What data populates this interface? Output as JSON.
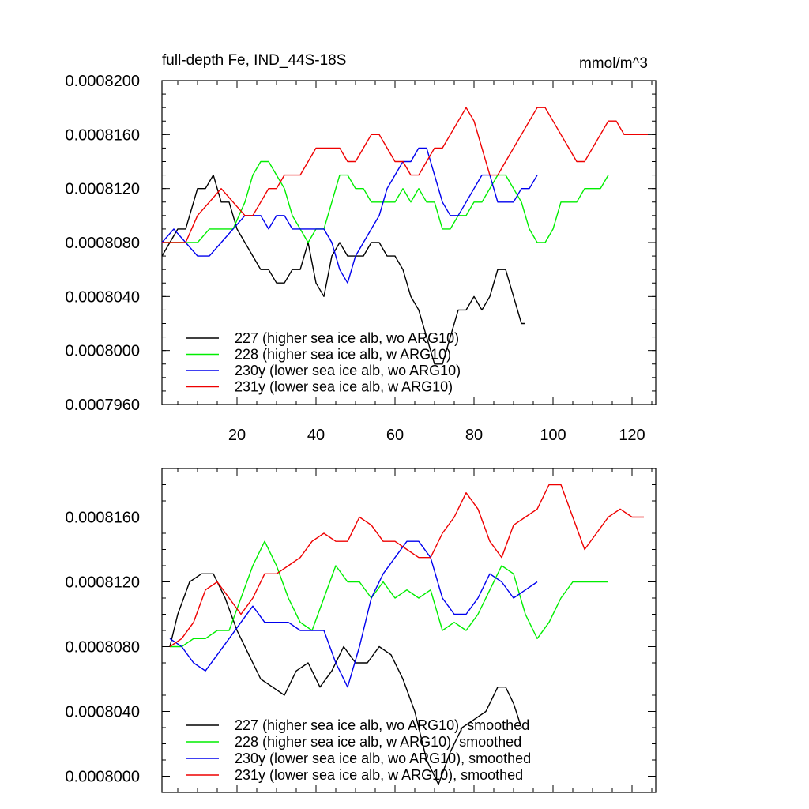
{
  "chart_data": [
    {
      "type": "line",
      "title": "full-depth Fe, IND_44S-18S",
      "unit_label": "mmol/m^3",
      "xlim": [
        1,
        126
      ],
      "ylim": [
        0.000796,
        0.00082
      ],
      "xticks": [
        20,
        40,
        60,
        80,
        100,
        120
      ],
      "xtick_labels": [
        "20",
        "40",
        "60",
        "80",
        "100",
        "120"
      ],
      "yticks": [
        0.000796,
        0.0008,
        0.000804,
        0.000808,
        0.000812,
        0.000816,
        0.00082
      ],
      "ytick_labels": [
        "0.0007960",
        "0.0008000",
        "0.0008040",
        "0.0008080",
        "0.0008120",
        "0.0008160",
        "0.0008200"
      ],
      "legend_position": "bottom-left",
      "series": [
        {
          "name": "227 (higher sea ice alb, wo ARG10)",
          "color": "#000000",
          "x": [
            1,
            5,
            7,
            10,
            12,
            14,
            16,
            18,
            20,
            22,
            24,
            26,
            28,
            30,
            32,
            34,
            36,
            38,
            40,
            42,
            44,
            46,
            48,
            50,
            52,
            54,
            56,
            58,
            60,
            62,
            64,
            66,
            68,
            70,
            72,
            74,
            76,
            78,
            80,
            82,
            84,
            86,
            88,
            90,
            92,
            93
          ],
          "y": [
            0.000807,
            0.000809,
            0.000809,
            0.000812,
            0.000812,
            0.000813,
            0.000811,
            0.000811,
            0.000809,
            0.000808,
            0.000807,
            0.000806,
            0.000806,
            0.000805,
            0.000805,
            0.000806,
            0.000806,
            0.000808,
            0.000805,
            0.000804,
            0.000807,
            0.000808,
            0.000807,
            0.000807,
            0.000807,
            0.000808,
            0.000808,
            0.000807,
            0.000807,
            0.000806,
            0.000804,
            0.000803,
            0.000801,
            0.000799,
            0.000799,
            0.000801,
            0.000803,
            0.000803,
            0.000804,
            0.000803,
            0.000804,
            0.000806,
            0.000806,
            0.000804,
            0.000802,
            0.000802
          ]
        },
        {
          "name": "228 (higher sea ice alb, w ARG10)",
          "color": "#00ee00",
          "x": [
            1,
            4,
            7,
            10,
            13,
            16,
            19,
            22,
            24,
            26,
            28,
            30,
            32,
            34,
            36,
            38,
            40,
            42,
            44,
            46,
            48,
            50,
            52,
            54,
            56,
            58,
            60,
            62,
            64,
            66,
            68,
            70,
            72,
            74,
            76,
            78,
            80,
            82,
            84,
            86,
            88,
            90,
            92,
            94,
            96,
            98,
            100,
            102,
            104,
            106,
            108,
            110,
            112,
            114
          ],
          "y": [
            0.000808,
            0.000808,
            0.000808,
            0.000808,
            0.000809,
            0.000809,
            0.000809,
            0.000811,
            0.000813,
            0.000814,
            0.000814,
            0.000813,
            0.000812,
            0.00081,
            0.000809,
            0.000808,
            0.000809,
            0.000809,
            0.000811,
            0.000813,
            0.000813,
            0.000812,
            0.000812,
            0.000811,
            0.000811,
            0.000811,
            0.000811,
            0.000812,
            0.000811,
            0.000812,
            0.000811,
            0.000811,
            0.000809,
            0.000809,
            0.00081,
            0.00081,
            0.000811,
            0.000811,
            0.000812,
            0.000813,
            0.000813,
            0.000812,
            0.000811,
            0.000809,
            0.000808,
            0.000808,
            0.000809,
            0.000811,
            0.000811,
            0.000811,
            0.000812,
            0.000812,
            0.000812,
            0.000813
          ]
        },
        {
          "name": "230y (lower sea ice alb, wo ARG10)",
          "color": "#0000ee",
          "x": [
            1,
            4,
            7,
            10,
            13,
            16,
            19,
            22,
            24,
            26,
            28,
            30,
            32,
            34,
            36,
            38,
            40,
            42,
            44,
            46,
            48,
            50,
            52,
            54,
            56,
            58,
            60,
            62,
            64,
            66,
            68,
            70,
            72,
            74,
            76,
            78,
            80,
            82,
            84,
            86,
            88,
            90,
            92,
            94,
            96
          ],
          "y": [
            0.000808,
            0.000809,
            0.000808,
            0.000807,
            0.000807,
            0.000808,
            0.000809,
            0.00081,
            0.00081,
            0.00081,
            0.000809,
            0.00081,
            0.00081,
            0.000809,
            0.000809,
            0.000809,
            0.000809,
            0.000809,
            0.000808,
            0.000806,
            0.000805,
            0.000807,
            0.000808,
            0.000809,
            0.00081,
            0.000812,
            0.000813,
            0.000814,
            0.000814,
            0.000815,
            0.000815,
            0.000813,
            0.000811,
            0.00081,
            0.00081,
            0.000811,
            0.000812,
            0.000813,
            0.000813,
            0.000811,
            0.000811,
            0.000811,
            0.000812,
            0.000812,
            0.000813
          ]
        },
        {
          "name": "231y (lower sea ice alb, w ARG10)",
          "color": "#ee0000",
          "x": [
            1,
            4,
            7,
            10,
            13,
            16,
            19,
            22,
            24,
            26,
            28,
            30,
            32,
            34,
            36,
            38,
            40,
            42,
            44,
            46,
            48,
            50,
            52,
            54,
            56,
            58,
            60,
            62,
            64,
            66,
            68,
            70,
            72,
            74,
            76,
            78,
            80,
            82,
            84,
            86,
            88,
            90,
            92,
            94,
            96,
            98,
            100,
            102,
            104,
            106,
            108,
            110,
            112,
            114,
            116,
            118,
            120,
            122,
            124
          ],
          "y": [
            0.000808,
            0.000808,
            0.000808,
            0.00081,
            0.000811,
            0.000812,
            0.000811,
            0.00081,
            0.00081,
            0.000811,
            0.000812,
            0.000812,
            0.000813,
            0.000813,
            0.000813,
            0.000814,
            0.000815,
            0.000815,
            0.000815,
            0.000815,
            0.000814,
            0.000814,
            0.000815,
            0.000816,
            0.000816,
            0.000815,
            0.000814,
            0.000814,
            0.000813,
            0.000813,
            0.000814,
            0.000815,
            0.000815,
            0.000816,
            0.000817,
            0.000818,
            0.000817,
            0.000815,
            0.000813,
            0.000813,
            0.000814,
            0.000815,
            0.000816,
            0.000817,
            0.000818,
            0.000818,
            0.000817,
            0.000816,
            0.000815,
            0.000814,
            0.000814,
            0.000815,
            0.000816,
            0.000817,
            0.000817,
            0.000816,
            0.000816,
            0.000816,
            0.000816
          ]
        }
      ]
    },
    {
      "type": "line",
      "xlim": [
        1,
        126
      ],
      "ylim": [
        0.000799,
        0.000819
      ],
      "xticks": [
        20,
        40,
        60,
        80,
        100,
        120
      ],
      "yticks": [
        0.0008,
        0.000804,
        0.000808,
        0.000812,
        0.000816
      ],
      "ytick_labels": [
        "0.0008000",
        "0.0008040",
        "0.0008080",
        "0.0008120",
        "0.0008160"
      ],
      "legend_position": "bottom-left",
      "series": [
        {
          "name": "227 (higher sea ice alb, wo ARG10), smoothed",
          "color": "#000000",
          "x": [
            3,
            5,
            8,
            11,
            14,
            17,
            20,
            23,
            26,
            29,
            32,
            35,
            38,
            41,
            44,
            47,
            50,
            53,
            56,
            59,
            62,
            65,
            68,
            71,
            74,
            77,
            80,
            83,
            86,
            88,
            90,
            92
          ],
          "y": [
            0.000808,
            0.00081,
            0.000812,
            0.0008125,
            0.0008125,
            0.000811,
            0.000809,
            0.0008075,
            0.000806,
            0.0008055,
            0.000805,
            0.0008065,
            0.000807,
            0.0008055,
            0.0008065,
            0.000808,
            0.000807,
            0.000807,
            0.000808,
            0.0008075,
            0.000806,
            0.000804,
            0.000801,
            0.0007995,
            0.0008015,
            0.000803,
            0.0008035,
            0.000804,
            0.0008055,
            0.0008055,
            0.0008045,
            0.000803
          ]
        },
        {
          "name": "228 (higher sea ice alb, w ARG10), smoothed",
          "color": "#00ee00",
          "x": [
            3,
            6,
            9,
            12,
            15,
            18,
            21,
            24,
            27,
            30,
            33,
            36,
            39,
            42,
            45,
            48,
            51,
            54,
            57,
            60,
            63,
            66,
            69,
            72,
            75,
            78,
            81,
            84,
            87,
            90,
            93,
            96,
            99,
            102,
            105,
            108,
            111,
            114
          ],
          "y": [
            0.000808,
            0.000808,
            0.0008085,
            0.0008085,
            0.000809,
            0.000809,
            0.000811,
            0.000813,
            0.0008145,
            0.000813,
            0.000811,
            0.0008095,
            0.000809,
            0.000811,
            0.000813,
            0.000812,
            0.000812,
            0.000811,
            0.000812,
            0.000811,
            0.0008115,
            0.000811,
            0.0008115,
            0.000809,
            0.0008095,
            0.000809,
            0.00081,
            0.0008115,
            0.000813,
            0.0008125,
            0.00081,
            0.0008085,
            0.0008095,
            0.000811,
            0.000812,
            0.000812,
            0.000812,
            0.000812
          ]
        },
        {
          "name": "230y (lower sea ice alb, wo ARG10), smoothed",
          "color": "#0000ee",
          "x": [
            3,
            6,
            9,
            12,
            15,
            18,
            21,
            24,
            27,
            30,
            33,
            36,
            39,
            42,
            45,
            48,
            51,
            54,
            57,
            60,
            63,
            66,
            69,
            72,
            75,
            78,
            81,
            84,
            87,
            90,
            93,
            96
          ],
          "y": [
            0.0008085,
            0.000808,
            0.000807,
            0.0008065,
            0.0008075,
            0.0008085,
            0.0008095,
            0.0008105,
            0.0008095,
            0.0008095,
            0.0008095,
            0.000809,
            0.000809,
            0.000809,
            0.000807,
            0.0008055,
            0.000808,
            0.000811,
            0.0008125,
            0.0008135,
            0.0008145,
            0.0008145,
            0.0008135,
            0.000811,
            0.00081,
            0.00081,
            0.000811,
            0.0008125,
            0.000812,
            0.000811,
            0.0008115,
            0.000812
          ]
        },
        {
          "name": "231y (lower sea ice alb, w ARG10), smoothed",
          "color": "#ee0000",
          "x": [
            3,
            6,
            9,
            12,
            15,
            18,
            21,
            24,
            27,
            30,
            33,
            36,
            39,
            42,
            45,
            48,
            51,
            54,
            57,
            60,
            63,
            66,
            69,
            72,
            75,
            78,
            81,
            84,
            87,
            90,
            93,
            96,
            99,
            102,
            105,
            108,
            111,
            114,
            117,
            120,
            123
          ],
          "y": [
            0.000808,
            0.0008085,
            0.0008095,
            0.0008115,
            0.000812,
            0.000811,
            0.00081,
            0.000811,
            0.0008125,
            0.0008125,
            0.000813,
            0.0008135,
            0.0008145,
            0.000815,
            0.0008145,
            0.0008145,
            0.000816,
            0.0008155,
            0.0008145,
            0.0008145,
            0.000814,
            0.0008135,
            0.0008135,
            0.000815,
            0.000816,
            0.0008175,
            0.0008165,
            0.0008145,
            0.0008135,
            0.0008155,
            0.000816,
            0.0008165,
            0.000818,
            0.000818,
            0.000816,
            0.000814,
            0.000815,
            0.000816,
            0.0008165,
            0.000816,
            0.000816
          ]
        }
      ]
    }
  ]
}
